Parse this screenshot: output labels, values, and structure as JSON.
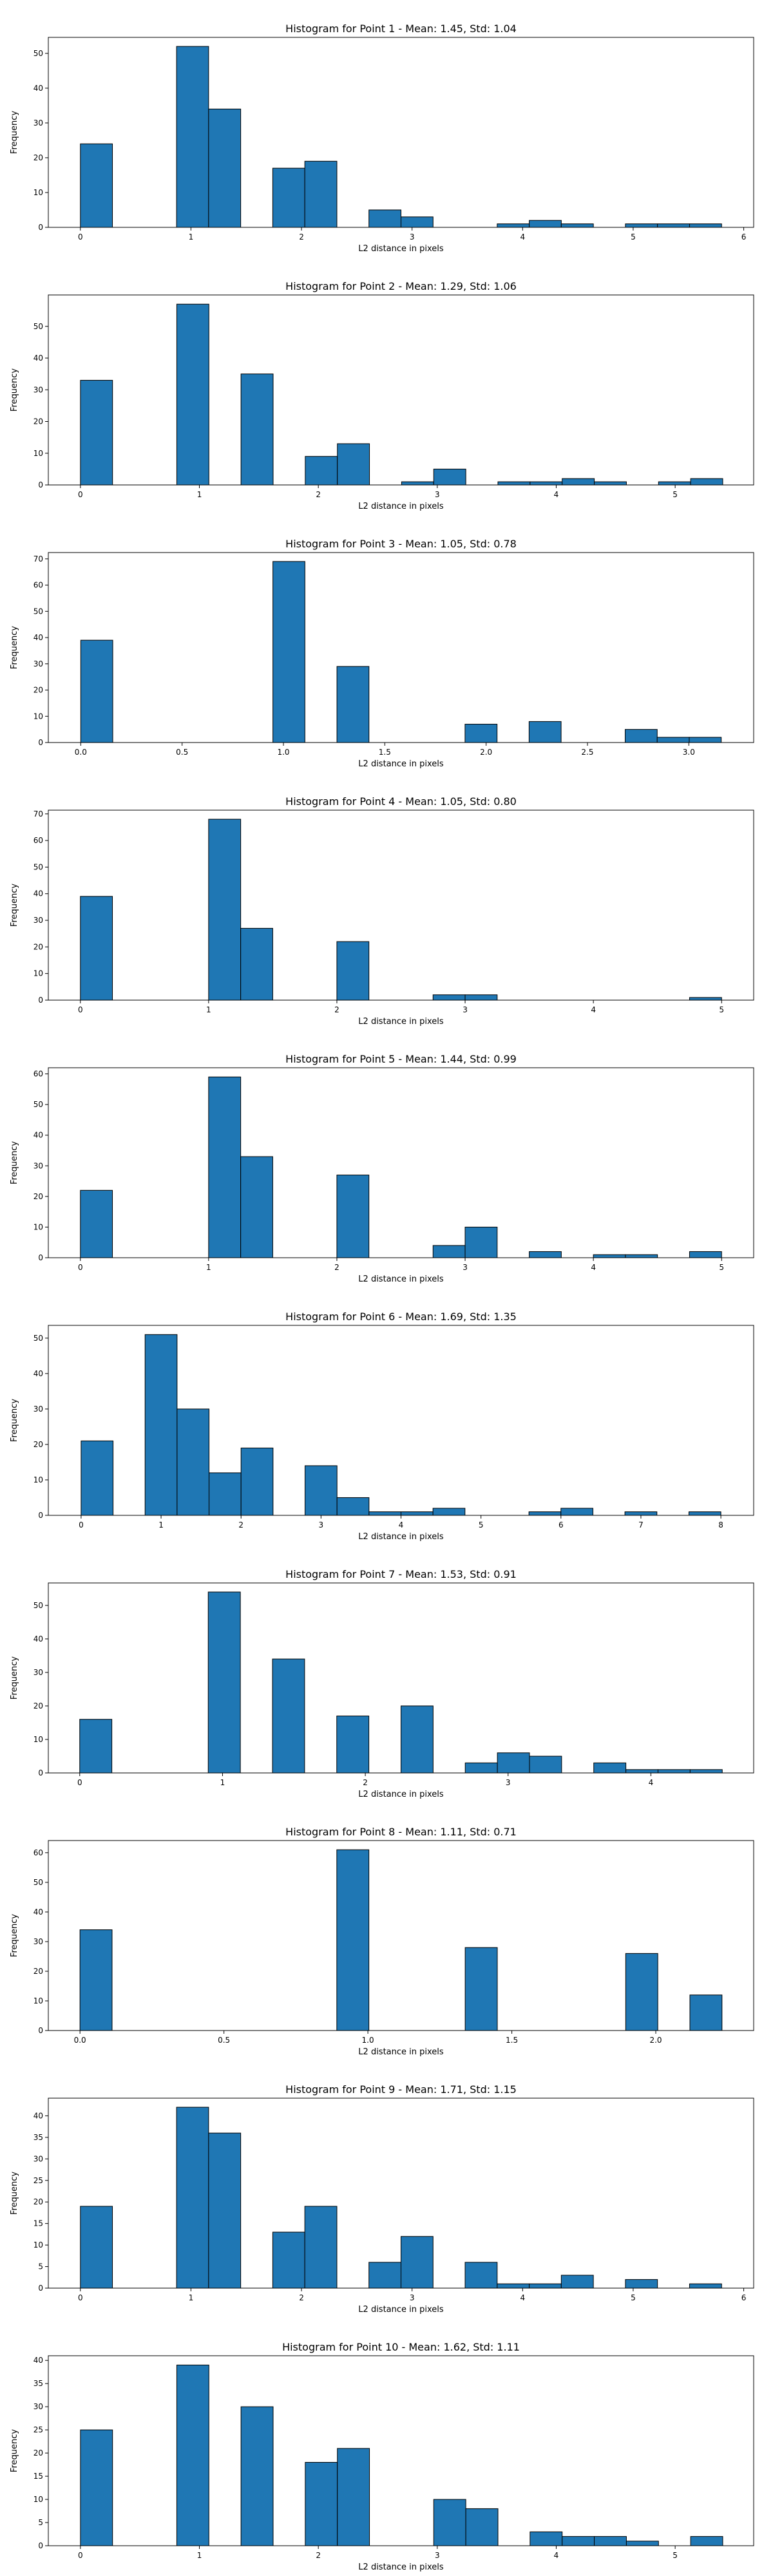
{
  "figure": {
    "background": "#ffffff",
    "bar_color": "#1f77b4",
    "edge_color": "#000000"
  },
  "chart_data": [
    {
      "type": "bar",
      "title": "Histogram for Point 1 - Mean: 1.45, Std: 1.04",
      "xlabel": "L2 distance in pixels",
      "ylabel": "Frequency",
      "xlim": [
        -0.29,
        6.09
      ],
      "ylim": [
        0,
        54.6
      ],
      "xticks": [
        0,
        1,
        2,
        3,
        4,
        5,
        6
      ],
      "xtick_labels": [
        "0",
        "1",
        "2",
        "3",
        "4",
        "5",
        "6"
      ],
      "yticks": [
        0,
        10,
        20,
        30,
        40,
        50
      ],
      "ytick_labels": [
        "0",
        "10",
        "20",
        "30",
        "40",
        "50"
      ],
      "bin_edges": [
        0.0,
        0.29,
        0.58,
        0.87,
        1.16,
        1.45,
        1.74,
        2.03,
        2.32,
        2.61,
        2.9,
        3.19,
        3.48,
        3.77,
        4.06,
        4.35,
        4.64,
        4.93,
        5.22,
        5.51,
        5.8
      ],
      "values": [
        24,
        0,
        0,
        52,
        34,
        0,
        17,
        19,
        0,
        5,
        3,
        0,
        0,
        1,
        2,
        1,
        0,
        1,
        1,
        1
      ]
    },
    {
      "type": "bar",
      "title": "Histogram for Point 2 - Mean: 1.29, Std: 1.06",
      "xlabel": "L2 distance in pixels",
      "ylabel": "Frequency",
      "xlim": [
        -0.27,
        5.66
      ],
      "ylim": [
        0,
        59.9
      ],
      "xticks": [
        0,
        1,
        2,
        3,
        4,
        5
      ],
      "xtick_labels": [
        "0",
        "1",
        "2",
        "3",
        "4",
        "5"
      ],
      "yticks": [
        0,
        10,
        20,
        30,
        40,
        50
      ],
      "ytick_labels": [
        "0",
        "10",
        "20",
        "30",
        "40",
        "50"
      ],
      "bin_edges": [
        0.0,
        0.27,
        0.54,
        0.81,
        1.08,
        1.35,
        1.62,
        1.89,
        2.16,
        2.43,
        2.7,
        2.97,
        3.24,
        3.51,
        3.78,
        4.05,
        4.32,
        4.59,
        4.86,
        5.13,
        5.4
      ],
      "values": [
        33,
        0,
        0,
        57,
        0,
        35,
        0,
        9,
        13,
        0,
        1,
        5,
        0,
        1,
        1,
        2,
        1,
        0,
        1,
        2
      ]
    },
    {
      "type": "bar",
      "title": "Histogram for Point 3 - Mean: 1.05, Std: 0.78",
      "xlabel": "L2 distance in pixels",
      "ylabel": "Frequency",
      "xlim": [
        -0.16,
        3.32
      ],
      "ylim": [
        0,
        72.4
      ],
      "xticks": [
        0.0,
        0.5,
        1.0,
        1.5,
        2.0,
        2.5,
        3.0
      ],
      "xtick_labels": [
        "0.0",
        "0.5",
        "1.0",
        "1.5",
        "2.0",
        "2.5",
        "3.0"
      ],
      "yticks": [
        0,
        10,
        20,
        30,
        40,
        50,
        60,
        70
      ],
      "ytick_labels": [
        "0",
        "10",
        "20",
        "30",
        "40",
        "50",
        "60",
        "70"
      ],
      "bin_edges": [
        0.0,
        0.158,
        0.316,
        0.474,
        0.632,
        0.79,
        0.948,
        1.106,
        1.264,
        1.422,
        1.58,
        1.738,
        1.896,
        2.054,
        2.212,
        2.37,
        2.528,
        2.686,
        2.844,
        3.002,
        3.16
      ],
      "values": [
        39,
        0,
        0,
        0,
        0,
        0,
        69,
        0,
        29,
        0,
        0,
        0,
        7,
        0,
        8,
        0,
        0,
        5,
        2,
        2
      ]
    },
    {
      "type": "bar",
      "title": "Histogram for Point 4 - Mean: 1.05, Std: 0.80",
      "xlabel": "L2 distance in pixels",
      "ylabel": "Frequency",
      "xlim": [
        -0.25,
        5.25
      ],
      "ylim": [
        0,
        71.4
      ],
      "xticks": [
        0,
        1,
        2,
        3,
        4,
        5
      ],
      "xtick_labels": [
        "0",
        "1",
        "2",
        "3",
        "4",
        "5"
      ],
      "yticks": [
        0,
        10,
        20,
        30,
        40,
        50,
        60,
        70
      ],
      "ytick_labels": [
        "0",
        "10",
        "20",
        "30",
        "40",
        "50",
        "60",
        "70"
      ],
      "bin_edges": [
        0.0,
        0.25,
        0.5,
        0.75,
        1.0,
        1.25,
        1.5,
        1.75,
        2.0,
        2.25,
        2.5,
        2.75,
        3.0,
        3.25,
        3.5,
        3.75,
        4.0,
        4.25,
        4.5,
        4.75,
        5.0
      ],
      "values": [
        39,
        0,
        0,
        0,
        68,
        27,
        0,
        0,
        22,
        0,
        0,
        2,
        2,
        0,
        0,
        0,
        0,
        0,
        0,
        1
      ]
    },
    {
      "type": "bar",
      "title": "Histogram for Point 5 - Mean: 1.44, Std: 0.99",
      "xlabel": "L2 distance in pixels",
      "ylabel": "Frequency",
      "xlim": [
        -0.25,
        5.25
      ],
      "ylim": [
        0,
        62.0
      ],
      "xticks": [
        0,
        1,
        2,
        3,
        4,
        5
      ],
      "xtick_labels": [
        "0",
        "1",
        "2",
        "3",
        "4",
        "5"
      ],
      "yticks": [
        0,
        10,
        20,
        30,
        40,
        50,
        60
      ],
      "ytick_labels": [
        "0",
        "10",
        "20",
        "30",
        "40",
        "50",
        "60"
      ],
      "bin_edges": [
        0.0,
        0.25,
        0.5,
        0.75,
        1.0,
        1.25,
        1.5,
        1.75,
        2.0,
        2.25,
        2.5,
        2.75,
        3.0,
        3.25,
        3.5,
        3.75,
        4.0,
        4.25,
        4.5,
        4.75,
        5.0
      ],
      "values": [
        22,
        0,
        0,
        0,
        59,
        33,
        0,
        0,
        27,
        0,
        0,
        4,
        10,
        0,
        2,
        0,
        1,
        1,
        0,
        2
      ]
    },
    {
      "type": "bar",
      "title": "Histogram for Point 6 - Mean: 1.69, Std: 1.35",
      "xlabel": "L2 distance in pixels",
      "ylabel": "Frequency",
      "xlim": [
        -0.41,
        8.41
      ],
      "ylim": [
        0,
        53.6
      ],
      "xticks": [
        0,
        1,
        2,
        3,
        4,
        5,
        6,
        7,
        8
      ],
      "xtick_labels": [
        "0",
        "1",
        "2",
        "3",
        "4",
        "5",
        "6",
        "7",
        "8"
      ],
      "yticks": [
        0,
        10,
        20,
        30,
        40,
        50
      ],
      "ytick_labels": [
        "0",
        "10",
        "20",
        "30",
        "40",
        "50"
      ],
      "bin_edges": [
        0.0,
        0.4,
        0.8,
        1.2,
        1.6,
        2.0,
        2.4,
        2.8,
        3.2,
        3.6,
        4.0,
        4.4,
        4.8,
        5.2,
        5.6,
        6.0,
        6.4,
        6.8,
        7.2,
        7.6,
        8.0
      ],
      "values": [
        21,
        0,
        51,
        30,
        12,
        19,
        0,
        14,
        5,
        1,
        1,
        2,
        0,
        0,
        1,
        2,
        0,
        1,
        0,
        1
      ]
    },
    {
      "type": "bar",
      "title": "Histogram for Point 7 - Mean: 1.53, Std: 0.91",
      "xlabel": "L2 distance in pixels",
      "ylabel": "Frequency",
      "xlim": [
        -0.22,
        4.72
      ],
      "ylim": [
        0,
        56.7
      ],
      "xticks": [
        0,
        1,
        2,
        3,
        4
      ],
      "xtick_labels": [
        "0",
        "1",
        "2",
        "3",
        "4"
      ],
      "yticks": [
        0,
        10,
        20,
        30,
        40,
        50
      ],
      "ytick_labels": [
        "0",
        "10",
        "20",
        "30",
        "40",
        "50"
      ],
      "bin_edges": [
        0.0,
        0.225,
        0.45,
        0.675,
        0.9,
        1.125,
        1.35,
        1.575,
        1.8,
        2.025,
        2.25,
        2.475,
        2.7,
        2.925,
        3.15,
        3.375,
        3.6,
        3.825,
        4.05,
        4.275,
        4.5
      ],
      "values": [
        16,
        0,
        0,
        0,
        54,
        0,
        34,
        0,
        17,
        0,
        20,
        0,
        3,
        6,
        5,
        0,
        3,
        1,
        1,
        1
      ]
    },
    {
      "type": "bar",
      "title": "Histogram for Point 8 - Mean: 1.11, Std: 0.71",
      "xlabel": "L2 distance in pixels",
      "ylabel": "Frequency",
      "xlim": [
        -0.11,
        2.34
      ],
      "ylim": [
        0,
        64.1
      ],
      "xticks": [
        0.0,
        0.5,
        1.0,
        1.5,
        2.0
      ],
      "xtick_labels": [
        "0.0",
        "0.5",
        "1.0",
        "1.5",
        "2.0"
      ],
      "yticks": [
        0,
        10,
        20,
        30,
        40,
        50,
        60
      ],
      "ytick_labels": [
        "0",
        "10",
        "20",
        "30",
        "40",
        "50",
        "60"
      ],
      "bin_edges": [
        0.0,
        0.1115,
        0.223,
        0.3345,
        0.446,
        0.5575,
        0.669,
        0.7805,
        0.892,
        1.0035,
        1.115,
        1.2265,
        1.338,
        1.4495,
        1.561,
        1.6725,
        1.784,
        1.8955,
        2.007,
        2.1185,
        2.23
      ],
      "values": [
        34,
        0,
        0,
        0,
        0,
        0,
        0,
        0,
        61,
        0,
        0,
        0,
        28,
        0,
        0,
        0,
        0,
        26,
        0,
        12
      ]
    },
    {
      "type": "bar",
      "title": "Histogram for Point 9 - Mean: 1.71, Std: 1.15",
      "xlabel": "L2 distance in pixels",
      "ylabel": "Frequency",
      "xlim": [
        -0.29,
        6.09
      ],
      "ylim": [
        0,
        44.1
      ],
      "xticks": [
        0,
        1,
        2,
        3,
        4,
        5,
        6
      ],
      "xtick_labels": [
        "0",
        "1",
        "2",
        "3",
        "4",
        "5",
        "6"
      ],
      "yticks": [
        0,
        5,
        10,
        15,
        20,
        25,
        30,
        35,
        40
      ],
      "ytick_labels": [
        "0",
        "5",
        "10",
        "15",
        "20",
        "25",
        "30",
        "35",
        "40"
      ],
      "bin_edges": [
        0.0,
        0.29,
        0.58,
        0.87,
        1.16,
        1.45,
        1.74,
        2.03,
        2.32,
        2.61,
        2.9,
        3.19,
        3.48,
        3.77,
        4.06,
        4.35,
        4.64,
        4.93,
        5.22,
        5.51,
        5.8
      ],
      "values": [
        19,
        0,
        0,
        42,
        36,
        0,
        13,
        19,
        0,
        6,
        12,
        0,
        6,
        1,
        1,
        3,
        0,
        2,
        0,
        1
      ]
    },
    {
      "type": "bar",
      "title": "Histogram for Point 10 - Mean: 1.62, Std: 1.11",
      "xlabel": "L2 distance in pixels",
      "ylabel": "Frequency",
      "xlim": [
        -0.27,
        5.66
      ],
      "ylim": [
        0,
        41.0
      ],
      "xticks": [
        0,
        1,
        2,
        3,
        4,
        5
      ],
      "xtick_labels": [
        "0",
        "1",
        "2",
        "3",
        "4",
        "5"
      ],
      "yticks": [
        0,
        5,
        10,
        15,
        20,
        25,
        30,
        35,
        40
      ],
      "ytick_labels": [
        "0",
        "5",
        "10",
        "15",
        "20",
        "25",
        "30",
        "35",
        "40"
      ],
      "bin_edges": [
        0.0,
        0.27,
        0.54,
        0.81,
        1.08,
        1.35,
        1.62,
        1.89,
        2.16,
        2.43,
        2.7,
        2.97,
        3.24,
        3.51,
        3.78,
        4.05,
        4.32,
        4.59,
        4.86,
        5.13,
        5.4
      ],
      "values": [
        25,
        0,
        0,
        39,
        0,
        30,
        0,
        18,
        21,
        0,
        0,
        10,
        8,
        0,
        3,
        2,
        2,
        1,
        0,
        2
      ]
    }
  ]
}
